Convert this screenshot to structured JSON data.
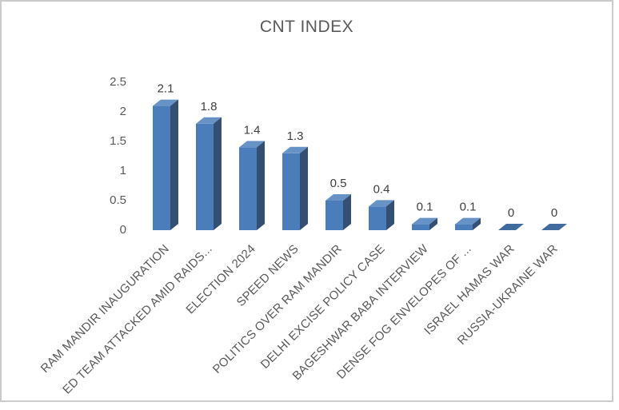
{
  "frame": {
    "background": "#ffffff",
    "border_color": "#cbcbcb"
  },
  "chart_data": {
    "type": "bar",
    "style": "3d-bar",
    "title": "CNT INDEX",
    "xlabel": "",
    "ylabel": "",
    "categories": [
      "RAM MANDIR INAUGURATION",
      "ED TEAM ATTACKED AMID RAIDS...",
      "ELECTION 2024",
      "SPEED NEWS",
      "POLITICS OVER RAM MANDIR",
      "DELHI EXCISE POLICY CASE",
      "BAGESHWAR BABA INTERVIEW",
      "DENSE FOG ENVELOPES OF ...",
      "ISRAEL HAMAS WAR",
      "RUSSIA-UKRAINE WAR"
    ],
    "values": [
      2.1,
      1.8,
      1.4,
      1.3,
      0.5,
      0.4,
      0.1,
      0.1,
      0,
      0
    ],
    "data_labels": [
      "2.1",
      "1.8",
      "1.4",
      "1.3",
      "0.5",
      "0.4",
      "0.1",
      "0.1",
      "0",
      "0"
    ],
    "ylim": [
      0,
      2.5
    ],
    "yticks": [
      0,
      0.5,
      1,
      1.5,
      2,
      2.5
    ],
    "ytick_labels": [
      "0",
      "0.5",
      "1",
      "1.5",
      "2",
      "2.5"
    ],
    "grid": false,
    "legend": "none",
    "axis_line": false,
    "colors": {
      "bar_front": "#4a7dba",
      "bar_top": "#6792c6",
      "bar_side": "#334f74",
      "bar_zero": "#406b9c",
      "title_text": "#595959",
      "tick_text": "#595959",
      "category_text": "#595959",
      "data_label_text": "#404040"
    }
  }
}
